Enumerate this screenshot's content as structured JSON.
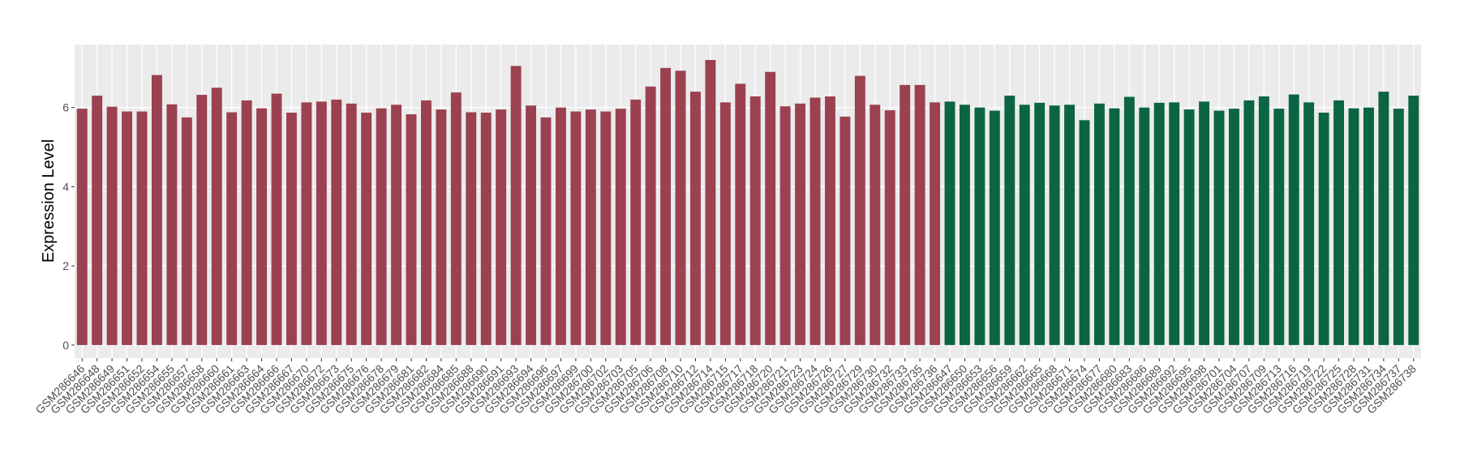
{
  "chart_data": {
    "type": "bar",
    "y_label": "Expression Level",
    "ylim": [
      -0.33,
      7.59
    ],
    "yticks": [
      0,
      2,
      4,
      6
    ],
    "grid": true,
    "background": "#ebebeb",
    "series": [
      {
        "color": "#9b4150",
        "categories": [
          "GSM286646",
          "GSM286648",
          "GSM286649",
          "GSM286651",
          "GSM286652",
          "GSM286654",
          "GSM286655",
          "GSM286657",
          "GSM286658",
          "GSM286660",
          "GSM286661",
          "GSM286663",
          "GSM286664",
          "GSM286666",
          "GSM286667",
          "GSM286670",
          "GSM286672",
          "GSM286673",
          "GSM286675",
          "GSM286676",
          "GSM286678",
          "GSM286679",
          "GSM286681",
          "GSM286682",
          "GSM286684",
          "GSM286685",
          "GSM286688",
          "GSM286690",
          "GSM286691",
          "GSM286693",
          "GSM286694",
          "GSM286696",
          "GSM286697",
          "GSM286699",
          "GSM286700",
          "GSM286702",
          "GSM286703",
          "GSM286705",
          "GSM286706",
          "GSM286708",
          "GSM286710",
          "GSM286712",
          "GSM286714",
          "GSM286715",
          "GSM286717",
          "GSM286718",
          "GSM286720",
          "GSM286721",
          "GSM286723",
          "GSM286724",
          "GSM286726",
          "GSM286727",
          "GSM286729",
          "GSM286730",
          "GSM286732",
          "GSM286733",
          "GSM286735",
          "GSM286736"
        ],
        "values": [
          5.97,
          6.3,
          6.02,
          5.9,
          5.9,
          6.82,
          6.08,
          5.75,
          6.32,
          6.5,
          5.88,
          6.18,
          5.98,
          6.35,
          5.87,
          6.13,
          6.15,
          6.2,
          6.1,
          5.87,
          5.98,
          6.07,
          5.83,
          6.18,
          5.95,
          6.38,
          5.88,
          5.87,
          5.95,
          7.05,
          6.05,
          5.75,
          6.0,
          5.9,
          5.95,
          5.9,
          5.97,
          6.2,
          6.53,
          7.0,
          6.93,
          6.4,
          7.2,
          6.13,
          6.6,
          6.28,
          6.9,
          6.03,
          6.1,
          6.25,
          6.28,
          5.77,
          6.8,
          6.07,
          5.93,
          6.57,
          6.57,
          6.13
        ]
      },
      {
        "color": "#0b6542",
        "categories": [
          "GSM286647",
          "GSM286650",
          "GSM286653",
          "GSM286656",
          "GSM286659",
          "GSM286662",
          "GSM286665",
          "GSM286668",
          "GSM286671",
          "GSM286674",
          "GSM286677",
          "GSM286680",
          "GSM286683",
          "GSM286686",
          "GSM286689",
          "GSM286692",
          "GSM286695",
          "GSM286698",
          "GSM286701",
          "GSM286704",
          "GSM286707",
          "GSM286709",
          "GSM286713",
          "GSM286716",
          "GSM286719",
          "GSM286722",
          "GSM286725",
          "GSM286728",
          "GSM286731",
          "GSM286734",
          "GSM286737",
          "GSM286738"
        ],
        "values": [
          6.15,
          6.07,
          6.0,
          5.92,
          6.3,
          6.07,
          6.12,
          6.05,
          6.07,
          5.68,
          6.1,
          5.98,
          6.27,
          6.0,
          6.12,
          6.13,
          5.95,
          6.15,
          5.92,
          5.97,
          6.18,
          6.28,
          5.97,
          6.33,
          6.13,
          5.87,
          6.18,
          5.98,
          6.0,
          6.4,
          5.97,
          6.3
        ]
      }
    ]
  }
}
